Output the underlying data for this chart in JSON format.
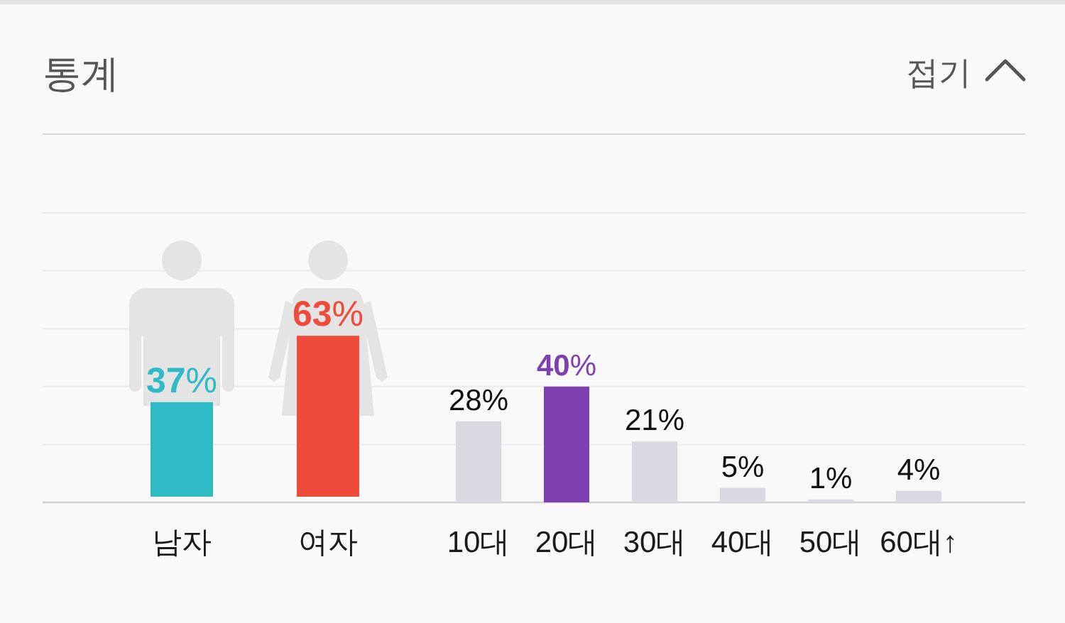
{
  "chart_data": [
    {
      "type": "bar",
      "title": "통계",
      "annotations": [
        "접기"
      ],
      "categories": [
        "남자",
        "여자"
      ],
      "values": [
        37,
        63
      ],
      "colors": [
        "#2ebbc6",
        "#ee4b3b"
      ],
      "value_labels": [
        "37%",
        "63%"
      ],
      "tick_labels": "x"
    },
    {
      "type": "bar",
      "categories": [
        "10대",
        "20대",
        "30대",
        "40대",
        "50대",
        "60대↑"
      ],
      "values": [
        28,
        40,
        21,
        5,
        1,
        4
      ],
      "colors": [
        "#d8d9e1",
        "#7e3fb0",
        "#d8d9e1",
        "#d8d9e1",
        "#d8d9e1",
        "#d8d9e1"
      ],
      "value_labels": [
        "28%",
        "40%",
        "21%",
        "5%",
        "1%",
        "4%"
      ],
      "ylim": [
        0,
        100
      ],
      "yticks": [
        {
          "value": 0,
          "label": null
        },
        {
          "value": 20,
          "label": null
        },
        {
          "value": 40,
          "label": null
        },
        {
          "value": 60,
          "label": null
        },
        {
          "value": 80,
          "label": null
        },
        {
          "value": 100,
          "label": null
        }
      ],
      "grid": "y",
      "tick_labels": "x"
    }
  ]
}
